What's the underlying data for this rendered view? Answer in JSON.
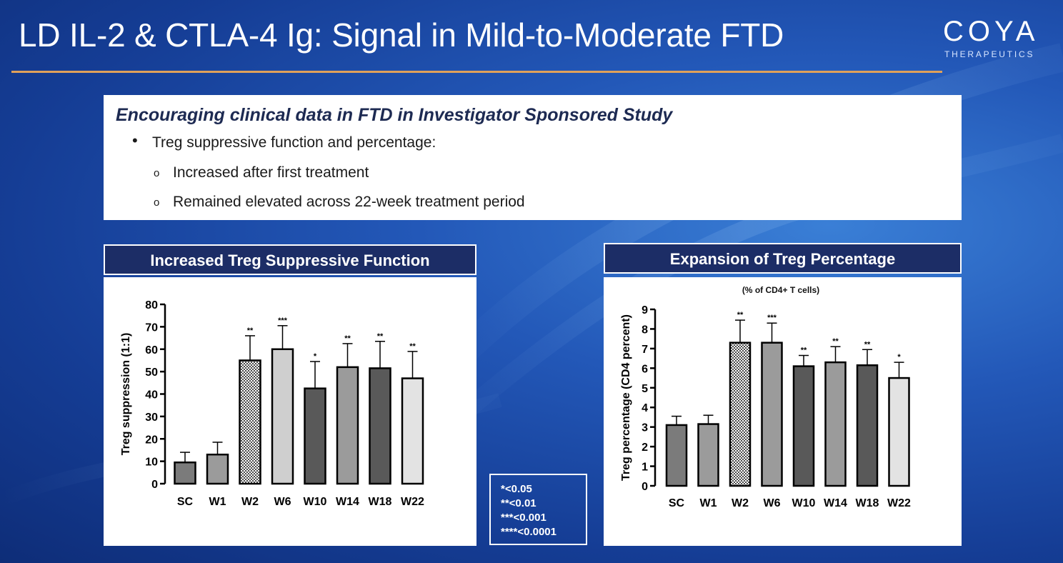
{
  "slide": {
    "title": "LD IL-2 & CTLA-4 Ig: Signal in Mild-to-Moderate FTD",
    "logo_word": "COYA",
    "logo_sub": "THERAPEUTICS",
    "accent_color": "#e0a15a"
  },
  "info": {
    "heading": "Encouraging clinical data in FTD in Investigator Sponsored Study",
    "bullet": "Treg suppressive function and percentage:",
    "subbullets": [
      "Increased after first treatment",
      "Remained elevated across 22-week treatment period"
    ]
  },
  "panels": {
    "left_title": "Increased Treg Suppressive Function",
    "right_title": "Expansion of Treg Percentage"
  },
  "legend": [
    "*<0.05",
    "**<0.01",
    "***<0.001",
    "****<0.0001"
  ],
  "chart_data": [
    {
      "type": "bar",
      "title": "Increased Treg Suppressive Function",
      "subtitle": "",
      "xlabel": "",
      "ylabel": "Treg suppression (1:1)",
      "ylim": [
        0,
        80
      ],
      "yticks": [
        0,
        10,
        20,
        30,
        40,
        50,
        60,
        70,
        80
      ],
      "categories": [
        "SC",
        "W1",
        "W2",
        "W6",
        "W10",
        "W14",
        "W18",
        "W22"
      ],
      "values": [
        9.5,
        13,
        55,
        60,
        42.5,
        52,
        51.5,
        47
      ],
      "errors": [
        4.5,
        5.5,
        11,
        10.5,
        12,
        10.5,
        12,
        12
      ],
      "significance": [
        "",
        "",
        "**",
        "***",
        "*",
        "**",
        "**",
        "**"
      ],
      "fills": [
        "#7b7b7b",
        "#9b9b9b",
        "pattern",
        "#cfcfcf",
        "#595959",
        "#9b9b9b",
        "#595959",
        "#e3e3e3"
      ]
    },
    {
      "type": "bar",
      "title": "Expansion of Treg Percentage",
      "subtitle": "(% of CD4+ T cells)",
      "xlabel": "",
      "ylabel": "Treg percentage (CD4 percent)",
      "ylim": [
        0,
        9
      ],
      "yticks": [
        0,
        1,
        2,
        3,
        4,
        5,
        6,
        7,
        8,
        9
      ],
      "categories": [
        "SC",
        "W1",
        "W2",
        "W6",
        "W10",
        "W14",
        "W18",
        "W22"
      ],
      "values": [
        3.1,
        3.15,
        7.3,
        7.3,
        6.1,
        6.3,
        6.15,
        5.5
      ],
      "errors": [
        0.45,
        0.45,
        1.15,
        1.0,
        0.55,
        0.8,
        0.8,
        0.8
      ],
      "significance": [
        "",
        "",
        "**",
        "***",
        "**",
        "**",
        "**",
        "*"
      ],
      "fills": [
        "#7b7b7b",
        "#9b9b9b",
        "pattern",
        "#9b9b9b",
        "#595959",
        "#9b9b9b",
        "#595959",
        "#e3e3e3"
      ]
    }
  ]
}
